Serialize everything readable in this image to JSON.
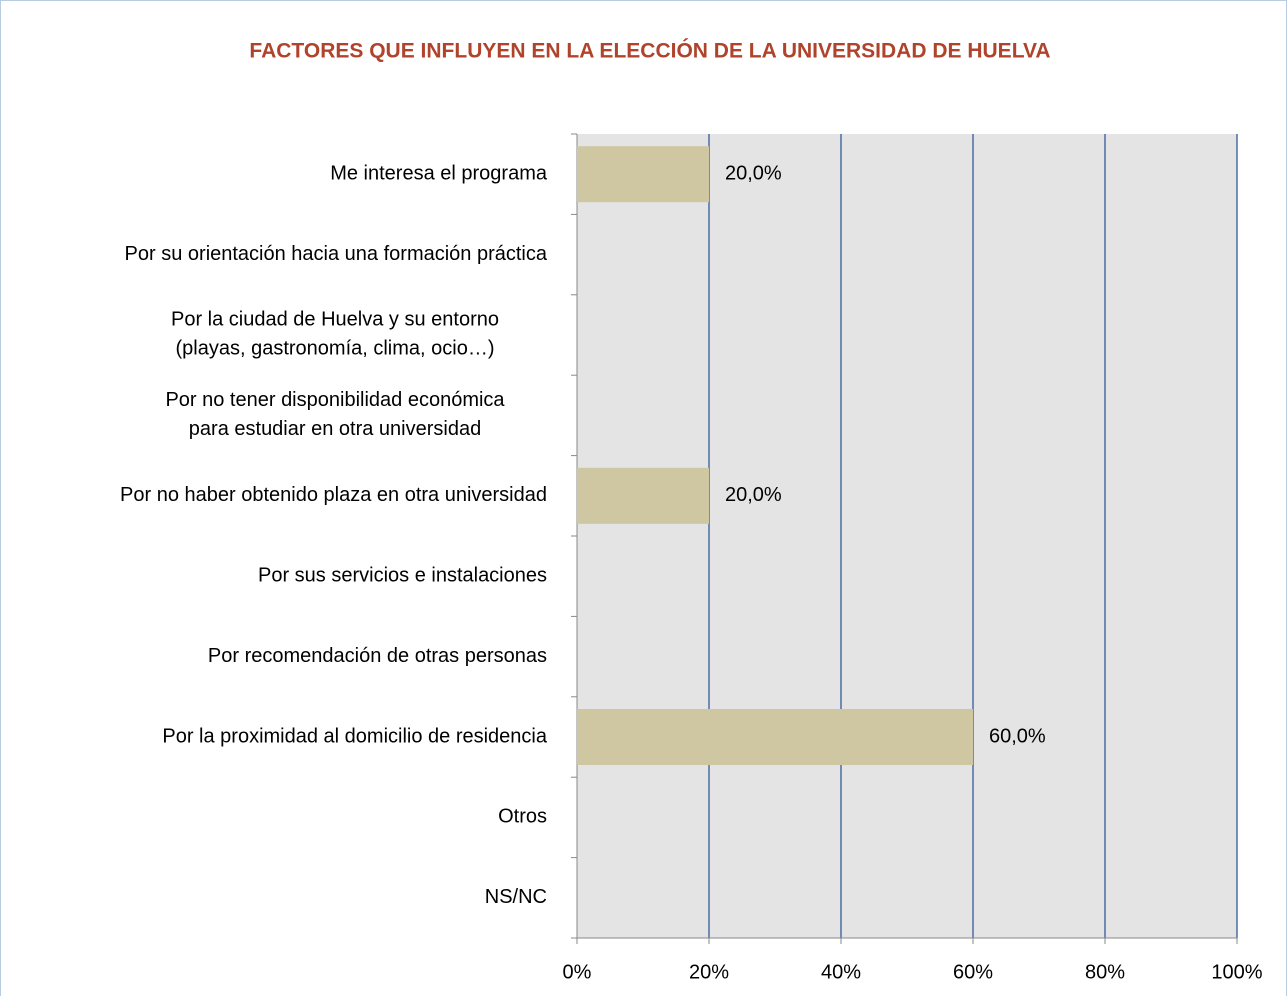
{
  "chart_data": {
    "type": "barh",
    "title": "FACTORES QUE INFLUYEN EN LA ELECCIÓN DE LA UNIVERSIDAD DE HUELVA",
    "categories": [
      "Me interesa el programa",
      "Por su orientación hacia una formación práctica",
      "Por la ciudad de Huelva y su entorno\n(playas, gastronomía, clima, ocio…)",
      "Por no tener disponibilidad económica\npara estudiar en otra universidad",
      "Por no haber obtenido plaza en otra universidad",
      "Por sus servicios e instalaciones",
      "Por recomendación de otras personas",
      "Por la proximidad al domicilio de residencia",
      "Otros",
      "NS/NC"
    ],
    "values": [
      20,
      0,
      0,
      0,
      20,
      0,
      0,
      60,
      0,
      0
    ],
    "value_labels": [
      "20,0%",
      null,
      null,
      null,
      "20,0%",
      null,
      null,
      "60,0%",
      null,
      null
    ],
    "color": "#cfc7a1",
    "xlim": [
      0,
      100
    ],
    "xticks": [
      {
        "value": 0,
        "label": "0%"
      },
      {
        "value": 20,
        "label": "20%"
      },
      {
        "value": 40,
        "label": "40%"
      },
      {
        "value": 60,
        "label": "60%"
      },
      {
        "value": 80,
        "label": "80%"
      },
      {
        "value": 100,
        "label": "100%"
      }
    ],
    "grid": true
  }
}
